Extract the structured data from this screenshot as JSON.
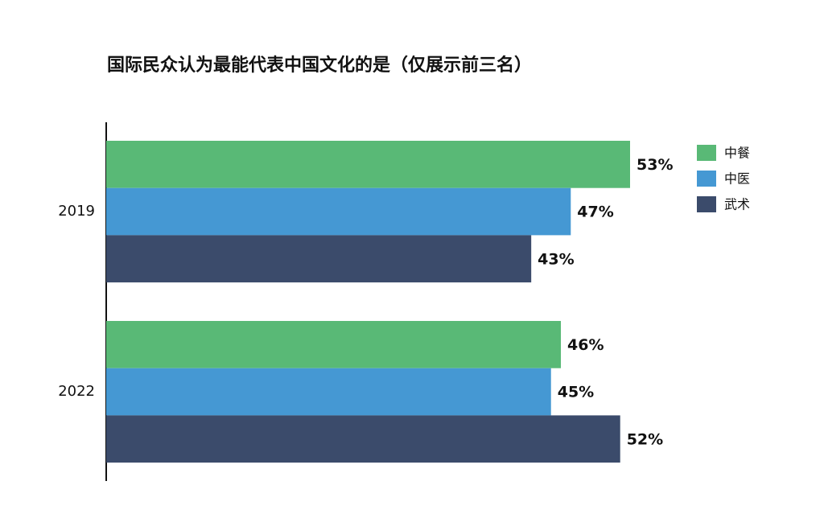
{
  "chart_data": {
    "type": "bar",
    "orientation": "horizontal",
    "title": "国际民众认为最能代表中国文化的是（仅展示前三名）",
    "categories": [
      "2019",
      "2022"
    ],
    "series": [
      {
        "name": "中餐",
        "color": "#59b976",
        "values": [
          53,
          46
        ],
        "value_labels": [
          "53%",
          "46%"
        ]
      },
      {
        "name": "中医",
        "color": "#4598d3",
        "values": [
          47,
          45
        ],
        "value_labels": [
          "47%",
          "45%"
        ]
      },
      {
        "name": "武术",
        "color": "#3b4b6b",
        "values": [
          43,
          52
        ],
        "value_labels": [
          "43%",
          "52%"
        ]
      }
    ],
    "legend": "upper right"
  }
}
